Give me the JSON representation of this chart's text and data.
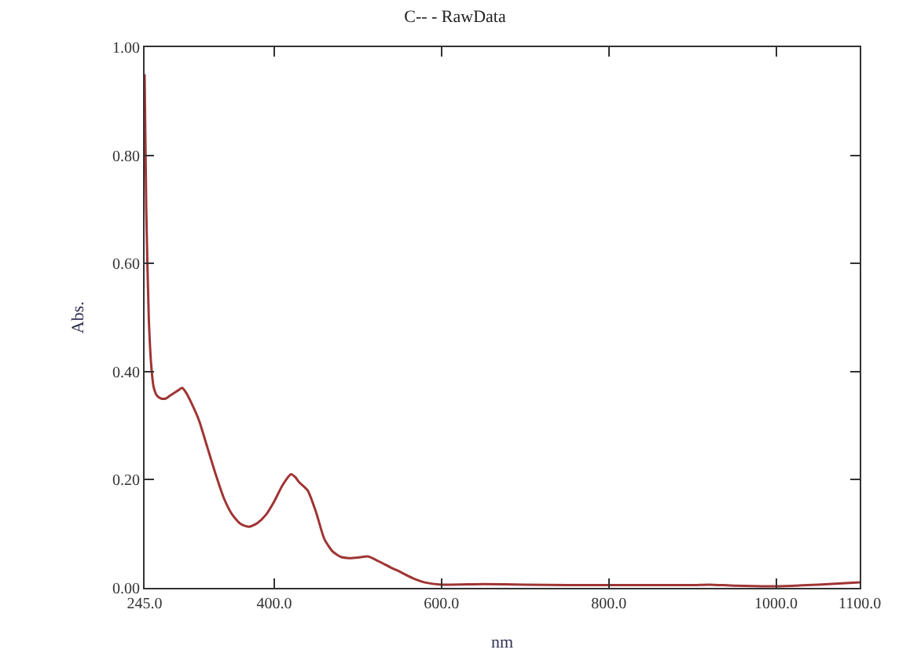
{
  "chart_data": {
    "type": "line",
    "title": "C-- - RawData",
    "xlabel": "nm",
    "ylabel": "Abs.",
    "xlim": [
      245,
      1100
    ],
    "xticks": [
      {
        "value": 245,
        "label": "245.0"
      },
      {
        "value": 400,
        "label": "400.0"
      },
      {
        "value": 600,
        "label": "600.0"
      },
      {
        "value": 800,
        "label": "800.0"
      },
      {
        "value": 1000,
        "label": "1000.0"
      },
      {
        "value": 1100,
        "label": "1100.0"
      }
    ],
    "ylim": [
      0,
      1
    ],
    "yticks": [
      {
        "value": 0,
        "label": "0.00"
      },
      {
        "value": 0.2,
        "label": "0.20"
      },
      {
        "value": 0.4,
        "label": "0.40"
      },
      {
        "value": 0.6,
        "label": "0.60"
      },
      {
        "value": 0.8,
        "label": "0.80"
      },
      {
        "value": 1,
        "label": "1.00"
      }
    ],
    "marker": "none",
    "line_style": "solid",
    "series": [
      {
        "color": "#a03434",
        "x": [
          245,
          247,
          250,
          253,
          256,
          260,
          265,
          270,
          275,
          280,
          285,
          290,
          295,
          300,
          310,
          320,
          330,
          340,
          350,
          360,
          370,
          380,
          390,
          400,
          410,
          420,
          425,
          430,
          440,
          450,
          460,
          470,
          480,
          490,
          500,
          512,
          520,
          530,
          540,
          550,
          560,
          570,
          580,
          600,
          650,
          700,
          750,
          800,
          850,
          900,
          920,
          950,
          1000,
          1050,
          1100
        ],
        "values": [
          0.95,
          0.7,
          0.5,
          0.41,
          0.37,
          0.355,
          0.35,
          0.35,
          0.355,
          0.36,
          0.365,
          0.37,
          0.36,
          0.345,
          0.31,
          0.26,
          0.21,
          0.165,
          0.135,
          0.118,
          0.113,
          0.12,
          0.135,
          0.16,
          0.19,
          0.21,
          0.205,
          0.195,
          0.18,
          0.14,
          0.09,
          0.067,
          0.057,
          0.055,
          0.056,
          0.058,
          0.053,
          0.045,
          0.037,
          0.03,
          0.022,
          0.015,
          0.01,
          0.006,
          0.007,
          0.006,
          0.005,
          0.005,
          0.005,
          0.005,
          0.006,
          0.004,
          0.003,
          0.006,
          0.01
        ]
      }
    ]
  }
}
